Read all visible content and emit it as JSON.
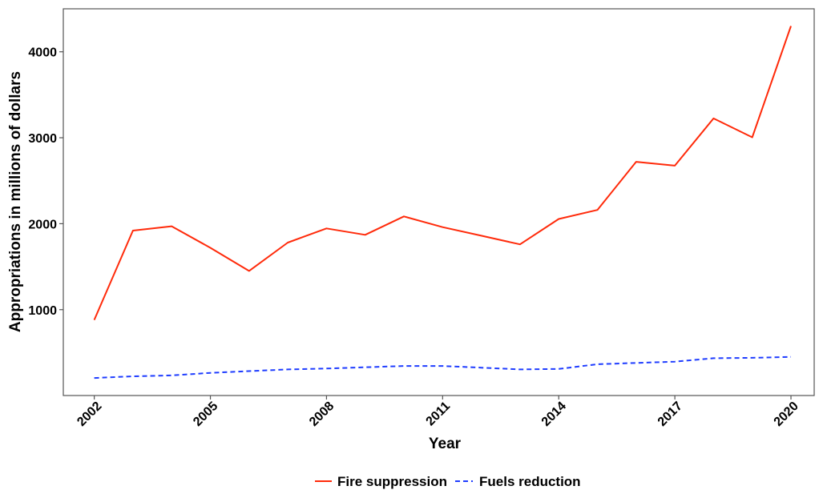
{
  "chart_data": {
    "type": "line",
    "title": "",
    "xlabel": "Year",
    "ylabel": "Appropriations in millions of dollars",
    "xlim": [
      2001.2,
      2020.6
    ],
    "ylim": [
      1,
      4500
    ],
    "x_ticks": [
      2002,
      2005,
      2008,
      2011,
      2014,
      2017,
      2020
    ],
    "y_ticks": [
      1000,
      2000,
      3000,
      4000
    ],
    "grid": false,
    "legend_position": "bottom",
    "x": [
      2002,
      2003,
      2004,
      2005,
      2006,
      2007,
      2008,
      2009,
      2010,
      2011,
      2012,
      2013,
      2014,
      2015,
      2016,
      2017,
      2018,
      2019,
      2020
    ],
    "series": [
      {
        "name": "Fire suppression",
        "color": "#ff2a0a",
        "dash": "solid",
        "values": [
          880,
          1920,
          1970,
          1720,
          1450,
          1780,
          1945,
          1870,
          2085,
          1960,
          1860,
          1760,
          2055,
          2160,
          2720,
          2675,
          3225,
          3005,
          4300
        ]
      },
      {
        "name": "Fuels reduction",
        "color": "#1f3dff",
        "dash": "dashed",
        "values": [
          205,
          225,
          235,
          265,
          285,
          305,
          315,
          330,
          345,
          345,
          325,
          305,
          310,
          365,
          380,
          395,
          435,
          440,
          450
        ]
      }
    ]
  }
}
